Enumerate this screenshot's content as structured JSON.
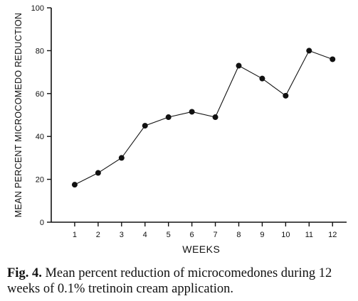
{
  "chart_data": {
    "type": "line",
    "xlabel": "WEEKS",
    "ylabel": "MEAN PERCENT MICROCOMEDO REDUCTION",
    "x": [
      1,
      2,
      3,
      4,
      5,
      6,
      7,
      8,
      9,
      10,
      11,
      12
    ],
    "series": [
      {
        "values": [
          17.5,
          23,
          30,
          45,
          49,
          51.5,
          49,
          73,
          67,
          59,
          80,
          76
        ]
      }
    ],
    "xticks": [
      "1",
      "2",
      "3",
      "4",
      "5",
      "6",
      "7",
      "8",
      "9",
      "10",
      "11",
      "12"
    ],
    "yticks": [
      "0",
      "20",
      "40",
      "60",
      "80",
      "100"
    ],
    "ylim": [
      0,
      100
    ],
    "xlim": [
      0,
      12.6
    ],
    "grid": false,
    "marker": "filled-circle",
    "color": "#111111"
  },
  "caption": {
    "label": "Fig. 4.",
    "text": "Mean percent reduction of microcomedones during 12 weeks of 0.1% tretinoin cream application."
  }
}
